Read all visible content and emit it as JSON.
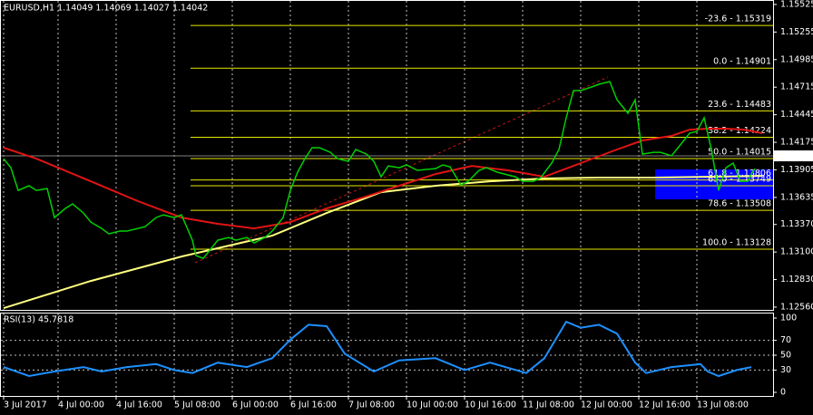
{
  "chart_data": [
    {
      "type": "line",
      "title": "EURUSD,H1  1.14049 1.14069 1.14027 1.14042",
      "xlim": [
        -1,
        212
      ],
      "xticks": [
        {
          "value": 0,
          "label": "3 Jul 2017"
        },
        {
          "value": 15,
          "label": "4 Jul 00:00"
        },
        {
          "value": 31,
          "label": "4 Jul 16:00"
        },
        {
          "value": 47,
          "label": "5 Jul 08:00"
        },
        {
          "value": 63,
          "label": "6 Jul 00:00"
        },
        {
          "value": 79,
          "label": "6 Jul 16:00"
        },
        {
          "value": 95,
          "label": "7 Jul 08:00"
        },
        {
          "value": 111,
          "label": "10 Jul 00:00"
        },
        {
          "value": 127,
          "label": "10 Jul 16:00"
        },
        {
          "value": 143,
          "label": "11 Jul 08:00"
        },
        {
          "value": 159,
          "label": "12 Jul 00:00"
        },
        {
          "value": 175,
          "label": "12 Jul 16:00"
        },
        {
          "value": 191,
          "label": "13 Jul 08:00"
        }
      ],
      "ylim": [
        1.12533,
        1.15569
      ],
      "yticks": [
        1.15525,
        1.15255,
        1.14985,
        1.14715,
        1.14445,
        1.14175,
        1.13905,
        1.13635,
        {
          "value": 1.1337,
          "label": "1.13370"
        },
        {
          "value": 1.131,
          "label": "1.13100"
        },
        {
          "value": 1.1283,
          "label": "1.12830"
        },
        {
          "value": 1.1256,
          "label": "1.12560"
        }
      ],
      "grid": "x",
      "current_price": 1.14042,
      "fib_levels": [
        {
          "value": 1.15319,
          "label": "-23.6 - 1.15319"
        },
        {
          "value": 1.14901,
          "label": "0.0 - 1.14901"
        },
        {
          "value": 1.14483,
          "label": "23.6 - 1.14483"
        },
        {
          "value": 1.14224,
          "label": "38.2 - 1.14224"
        },
        {
          "value": 1.14015,
          "label": "50.0 - 1.14015"
        },
        {
          "value": 1.13806,
          "label": "61.8 - 1.13806"
        },
        {
          "value": 1.13749,
          "label": "65.0 - 1.13749"
        },
        {
          "value": 1.13508,
          "label": "78.6 - 1.13508"
        },
        {
          "value": 1.13128,
          "label": "100.0 - 1.13128"
        }
      ],
      "fib_color": "#e8e800",
      "series": [
        {
          "color": "#ffff80",
          "x": [
            0,
            24,
            49,
            74,
            89,
            104,
            119,
            134,
            149,
            164,
            179,
            194,
            209
          ],
          "values": [
            1.1255,
            1.12816,
            1.13056,
            1.1326,
            1.13482,
            1.13686,
            1.13749,
            1.13793,
            1.1382,
            1.13829,
            1.13829,
            1.13837,
            1.13846
          ]
        },
        {
          "color": "#e01414",
          "x": [
            0,
            9,
            24,
            37,
            49,
            59,
            69,
            79,
            89,
            99,
            109,
            119,
            129,
            139,
            149,
            159,
            169,
            176,
            184,
            189,
            194,
            199,
            204,
            209
          ],
          "values": [
            1.14122,
            1.14015,
            1.13793,
            1.13598,
            1.13438,
            1.13376,
            1.13331,
            1.13393,
            1.13527,
            1.13633,
            1.13749,
            1.13864,
            1.13944,
            1.139,
            1.13837,
            1.13971,
            1.14104,
            1.14193,
            1.14237,
            1.14299,
            1.14308,
            1.14308,
            1.14299,
            1.14264
          ]
        },
        {
          "color": "#00d000",
          "x": [
            0,
            2,
            4,
            7,
            9,
            12,
            14,
            17,
            19,
            22,
            24,
            27,
            29,
            32,
            34,
            37,
            39,
            42,
            44,
            47,
            49,
            52,
            53,
            55,
            57,
            59,
            62,
            64,
            67,
            69,
            72,
            74,
            77,
            79,
            81,
            83,
            85,
            87,
            90,
            92,
            95,
            97,
            100,
            102,
            104,
            106,
            109,
            111,
            114,
            116,
            119,
            121,
            123,
            126,
            128,
            131,
            133,
            136,
            138,
            141,
            143,
            146,
            148,
            151,
            153,
            155,
            157,
            159,
            162,
            164,
            167,
            169,
            172,
            174,
            176,
            179,
            181,
            184,
            186,
            189,
            191,
            193,
            195,
            197,
            199,
            201,
            203,
            205,
            206,
            207
          ],
          "values": [
            1.14015,
            1.13926,
            1.13704,
            1.13749,
            1.13704,
            1.13722,
            1.13438,
            1.13527,
            1.13571,
            1.13482,
            1.13393,
            1.13331,
            1.13278,
            1.13305,
            1.13305,
            1.13331,
            1.13349,
            1.13438,
            1.13464,
            1.13438,
            1.13464,
            1.13216,
            1.13065,
            1.13038,
            1.13127,
            1.13216,
            1.13242,
            1.13216,
            1.13242,
            1.13189,
            1.13242,
            1.13305,
            1.13438,
            1.13704,
            1.13882,
            1.14015,
            1.14122,
            1.14122,
            1.14077,
            1.14015,
            1.13988,
            1.14104,
            1.14059,
            1.13988,
            1.13837,
            1.13944,
            1.13926,
            1.13953,
            1.139,
            1.13908,
            1.13917,
            1.13953,
            1.13935,
            1.13757,
            1.13793,
            1.139,
            1.13926,
            1.13882,
            1.13864,
            1.13837,
            1.13793,
            1.13793,
            1.13829,
            1.13971,
            1.14104,
            1.14415,
            1.14681,
            1.14681,
            1.14717,
            1.14743,
            1.1477,
            1.14592,
            1.14459,
            1.14592,
            1.14059,
            1.14077,
            1.14077,
            1.14042,
            1.1413,
            1.14264,
            1.14281,
            1.14415,
            1.14104,
            1.13704,
            1.13926,
            1.13971,
            1.13793,
            1.13793,
            1.13864,
            1.13917
          ]
        }
      ]
    },
    {
      "type": "line",
      "title": "RSI(13) 45.7818",
      "ylim": [
        0,
        100
      ],
      "yticks": [
        100,
        70,
        50,
        30,
        0
      ],
      "series": [
        {
          "color": "#1e90ff",
          "x": [
            0,
            7,
            14,
            22,
            27,
            34,
            42,
            47,
            52,
            59,
            67,
            74,
            79,
            84,
            89,
            94,
            102,
            109,
            119,
            127,
            134,
            144,
            149,
            155,
            159,
            164,
            169,
            174,
            177,
            184,
            192,
            194,
            197,
            202,
            206
          ],
          "values": [
            34,
            22,
            28,
            34,
            28,
            34,
            38,
            30,
            26,
            40,
            34,
            46,
            71,
            91,
            89,
            52,
            28,
            43,
            46,
            30,
            40,
            26,
            46,
            95,
            87,
            91,
            79,
            40,
            26,
            34,
            38,
            28,
            22,
            30,
            34
          ]
        }
      ]
    }
  ]
}
